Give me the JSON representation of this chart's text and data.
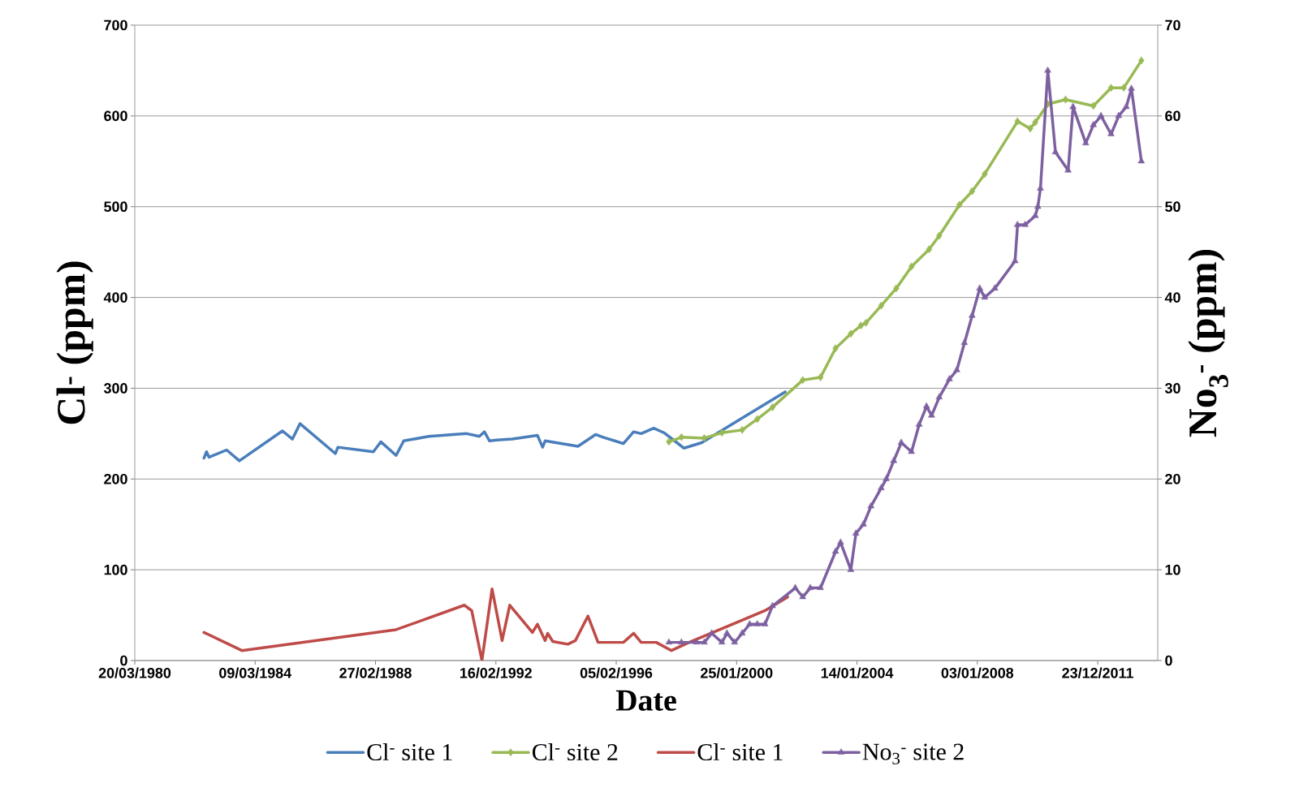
{
  "chart_data": {
    "type": "line",
    "xlabel": "Date",
    "ylabel": "Cl$^{-}$ (ppm)",
    "y2label": "No$_{3}$$^{-}$ (ppm)",
    "xlim": [
      "1980-03-20",
      "2013-12-15"
    ],
    "xticks": [
      {
        "value": "1980-03-20",
        "label": "20/03/1980"
      },
      {
        "value": "1984-03-09",
        "label": "09/03/1984"
      },
      {
        "value": "1988-02-27",
        "label": "27/02/1988"
      },
      {
        "value": "1992-02-16",
        "label": "16/02/1992"
      },
      {
        "value": "1996-02-05",
        "label": "05/02/1996"
      },
      {
        "value": "2000-01-25",
        "label": "25/01/2000"
      },
      {
        "value": "2004-01-14",
        "label": "14/01/2004"
      },
      {
        "value": "2008-01-03",
        "label": "03/01/2008"
      },
      {
        "value": "2011-12-23",
        "label": "23/12/2011"
      }
    ],
    "ylim": [
      0,
      700
    ],
    "yticks": [
      0,
      100,
      200,
      300,
      400,
      500,
      600,
      700
    ],
    "y2lim": [
      0,
      70
    ],
    "y2ticks": [
      0,
      10,
      20,
      30,
      40,
      50,
      60,
      70
    ],
    "grid": "y",
    "legend": "bottom",
    "series": [
      {
        "name": "Cl$^{-}$ site 1",
        "color": "#4a7ebb",
        "marker": "none",
        "x": [
          "1982-07",
          "1982-08",
          "1982-09",
          "1983-04",
          "1983-09",
          "1985-02",
          "1985-06",
          "1985-09",
          "1986-11",
          "1986-12",
          "1988-02",
          "1988-05",
          "1988-11",
          "1989-02",
          "1989-12",
          "1991-03",
          "1991-08",
          "1991-10",
          "1991-12",
          "1992-03",
          "1992-09",
          "1993-07",
          "1993-09",
          "1993-10",
          "1994-11",
          "1995-06",
          "1995-09",
          "1996-05",
          "1996-09",
          "1996-12",
          "1997-05",
          "1997-09",
          "1998-05",
          "1998-12",
          "2001-09"
        ],
        "values": [
          223,
          230,
          224,
          232,
          220,
          253,
          244,
          261,
          228,
          235,
          230,
          241,
          226,
          242,
          247,
          250,
          247,
          252,
          242,
          243,
          244,
          248,
          235,
          242,
          236,
          249,
          246,
          239,
          252,
          250,
          256,
          251,
          234,
          240,
          296
        ]
      },
      {
        "name": "Cl$^{-}$ site 2",
        "color": "#98b954",
        "marker": "diamond",
        "x": [
          "1997-11",
          "1998-04",
          "1999-01",
          "1999-08",
          "2000-04",
          "2000-10",
          "2001-04",
          "2002-04",
          "2002-11",
          "2003-05",
          "2003-11",
          "2004-03",
          "2004-05",
          "2004-11",
          "2005-05",
          "2005-11",
          "2006-06",
          "2006-10",
          "2007-06",
          "2007-11",
          "2008-04",
          "2009-05",
          "2009-10",
          "2009-12",
          "2010-05",
          "2010-12",
          "2011-11",
          "2012-06",
          "2012-11",
          "2013-06"
        ],
        "values": [
          241,
          246,
          245,
          251,
          254,
          266,
          279,
          309,
          312,
          344,
          360,
          369,
          372,
          391,
          410,
          434,
          453,
          468,
          502,
          517,
          536,
          594,
          586,
          593,
          613,
          618,
          611,
          631,
          631,
          661
        ]
      },
      {
        "name": "Cl$^{-}$ site 1",
        "color": "#be4b48",
        "marker": "none",
        "x": [
          "1982-07",
          "1983-10",
          "1988-11",
          "1991-02",
          "1991-05",
          "1991-09",
          "1992-01",
          "1992-05",
          "1992-08",
          "1993-05",
          "1993-07",
          "1993-10",
          "1993-11",
          "1994-01",
          "1994-07",
          "1994-10",
          "1995-03",
          "1995-07",
          "1996-05",
          "1996-09",
          "1996-12",
          "1997-06",
          "1997-12",
          "1998-07",
          "2001-01",
          "2001-10"
        ],
        "values": [
          31,
          11,
          34,
          61,
          55,
          0,
          79,
          22,
          61,
          31,
          40,
          22,
          30,
          21,
          18,
          22,
          49,
          20,
          20,
          30,
          20,
          20,
          11,
          20,
          55,
          70
        ]
      },
      {
        "name": "No$_{3}$$^{-}$ site 2",
        "color": "#7d60a0",
        "marker": "triangle",
        "axis": "y2",
        "x": [
          "1997-11",
          "1998-04",
          "1998-10",
          "1999-01",
          "1999-04",
          "1999-08",
          "1999-10",
          "2000-01",
          "2000-04",
          "2000-07",
          "2000-10",
          "2001-01",
          "2001-04",
          "2002-01",
          "2002-04",
          "2002-07",
          "2002-11",
          "2003-05",
          "2003-07",
          "2003-11",
          "2004-01",
          "2004-04",
          "2004-07",
          "2004-11",
          "2005-01",
          "2005-04",
          "2005-07",
          "2005-11",
          "2006-02",
          "2006-05",
          "2006-07",
          "2006-10",
          "2007-02",
          "2007-05",
          "2007-08",
          "2007-11",
          "2008-02",
          "2008-04",
          "2008-08",
          "2009-04",
          "2009-05",
          "2009-08",
          "2009-12",
          "2010-01",
          "2010-02",
          "2010-05",
          "2010-08",
          "2011-01",
          "2011-03",
          "2011-08",
          "2011-11",
          "2012-02",
          "2012-06",
          "2012-09",
          "2012-12",
          "2013-02",
          "2013-06"
        ],
        "values": [
          2,
          2,
          2,
          2,
          3,
          2,
          3,
          2,
          3,
          4,
          4,
          4,
          6,
          8,
          7,
          8,
          8,
          12,
          13,
          10,
          14,
          15,
          17,
          19,
          20,
          22,
          24,
          23,
          26,
          28,
          27,
          29,
          31,
          32,
          35,
          38,
          41,
          40,
          41,
          44,
          48,
          48,
          49,
          50,
          52,
          65,
          56,
          54,
          61,
          57,
          59,
          60,
          58,
          60,
          61,
          63,
          55
        ]
      }
    ]
  }
}
